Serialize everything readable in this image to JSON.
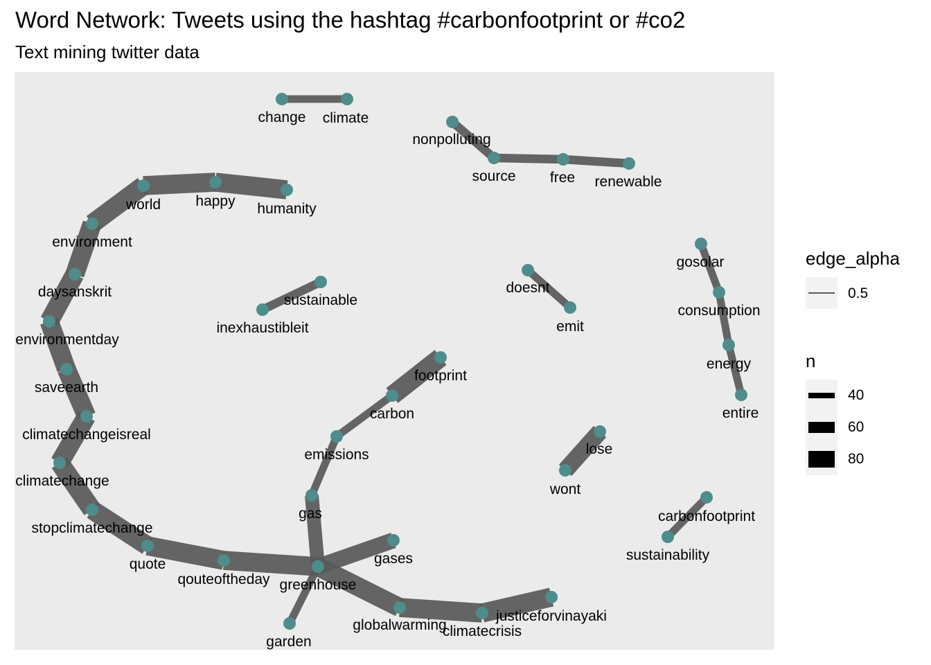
{
  "title": "Word Network: Tweets using the hashtag #carbonfootprint or #co2",
  "subtitle": "Text mining twitter data",
  "colors": {
    "panel": "#ebebeb",
    "edge": "#595959",
    "node": "#4f8c8c",
    "text": "#000000"
  },
  "legend": {
    "alpha": {
      "title": "edge_alpha",
      "label": "0.5"
    },
    "n": {
      "title": "n",
      "labels": [
        "40",
        "60",
        "80"
      ]
    }
  },
  "chart_data": {
    "type": "network",
    "nodes": [
      "change",
      "climate",
      "nonpolluting",
      "source",
      "free",
      "renewable",
      "world",
      "happy",
      "humanity",
      "environment",
      "daysanskrit",
      "environmentday",
      "saveearth",
      "climatechangeisreal",
      "climatechange",
      "stopclimatechange",
      "quote",
      "qouteoftheday",
      "greenhouse",
      "gases",
      "garden",
      "globalwarming",
      "climatecrisis",
      "justiceforvinayaki",
      "gas",
      "emissions",
      "carbon",
      "footprint",
      "sustainable",
      "inexhaustibleit",
      "doesnt",
      "emit",
      "gosolar",
      "consumption",
      "energy",
      "entire",
      "lose",
      "wont",
      "carbonfootprint",
      "sustainability"
    ],
    "edges": [
      {
        "from": "change",
        "to": "climate",
        "n": 30
      },
      {
        "from": "nonpolluting",
        "to": "source",
        "n": 35
      },
      {
        "from": "source",
        "to": "free",
        "n": 35
      },
      {
        "from": "free",
        "to": "renewable",
        "n": 35
      },
      {
        "from": "humanity",
        "to": "happy",
        "n": 85
      },
      {
        "from": "happy",
        "to": "world",
        "n": 85
      },
      {
        "from": "world",
        "to": "environment",
        "n": 85
      },
      {
        "from": "environment",
        "to": "daysanskrit",
        "n": 85
      },
      {
        "from": "daysanskrit",
        "to": "environmentday",
        "n": 85
      },
      {
        "from": "environmentday",
        "to": "saveearth",
        "n": 85
      },
      {
        "from": "saveearth",
        "to": "climatechangeisreal",
        "n": 85
      },
      {
        "from": "climatechangeisreal",
        "to": "climatechange",
        "n": 85
      },
      {
        "from": "climatechange",
        "to": "stopclimatechange",
        "n": 85
      },
      {
        "from": "stopclimatechange",
        "to": "quote",
        "n": 85
      },
      {
        "from": "quote",
        "to": "qouteoftheday",
        "n": 85
      },
      {
        "from": "qouteoftheday",
        "to": "greenhouse",
        "n": 85
      },
      {
        "from": "greenhouse",
        "to": "globalwarming",
        "n": 85
      },
      {
        "from": "globalwarming",
        "to": "climatecrisis",
        "n": 85
      },
      {
        "from": "climatecrisis",
        "to": "justiceforvinayaki",
        "n": 85
      },
      {
        "from": "greenhouse",
        "to": "gases",
        "n": 70
      },
      {
        "from": "greenhouse",
        "to": "garden",
        "n": 30
      },
      {
        "from": "greenhouse",
        "to": "gas",
        "n": 60
      },
      {
        "from": "gas",
        "to": "emissions",
        "n": 30
      },
      {
        "from": "emissions",
        "to": "carbon",
        "n": 30
      },
      {
        "from": "carbon",
        "to": "footprint",
        "n": 85
      },
      {
        "from": "sustainable",
        "to": "inexhaustibleit",
        "n": 35
      },
      {
        "from": "doesnt",
        "to": "emit",
        "n": 30
      },
      {
        "from": "gosolar",
        "to": "consumption",
        "n": 30
      },
      {
        "from": "consumption",
        "to": "energy",
        "n": 30
      },
      {
        "from": "energy",
        "to": "entire",
        "n": 30
      },
      {
        "from": "lose",
        "to": "wont",
        "n": 75
      },
      {
        "from": "carbonfootprint",
        "to": "sustainability",
        "n": 30
      }
    ]
  }
}
